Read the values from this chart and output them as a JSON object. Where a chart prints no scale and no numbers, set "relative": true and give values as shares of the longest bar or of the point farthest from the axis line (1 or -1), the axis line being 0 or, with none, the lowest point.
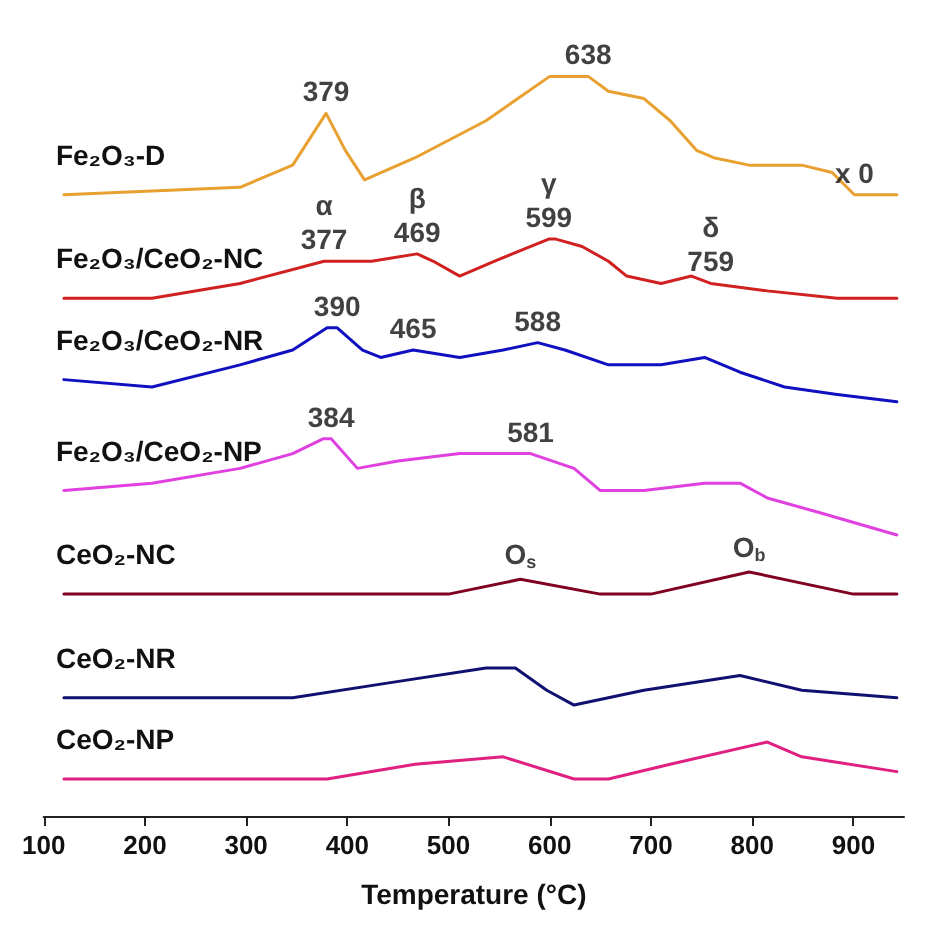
{
  "chart_data": {
    "type": "line",
    "relative": true,
    "xlabel": "Temperature (°C)",
    "xlim": [
      100,
      950
    ],
    "xticks": [
      100,
      200,
      300,
      400,
      500,
      600,
      700,
      800,
      900
    ],
    "grid": false,
    "legend": false,
    "marker": "none",
    "line_style": "solid",
    "series": [
      {
        "name": "Fe₂O₃-D",
        "color": "#e8a030",
        "x": [
          120,
          294,
          346,
          379,
          398,
          417,
          467,
          537,
          600,
          606,
          632,
          638,
          658,
          693,
          719,
          745,
          762,
          797,
          849,
          879,
          901,
          943
        ],
        "values": [
          0.84,
          0.85,
          0.88,
          0.95,
          0.9,
          0.86,
          0.89,
          0.94,
          1.0,
          1.0,
          1.0,
          1.0,
          0.98,
          0.97,
          0.94,
          0.9,
          0.89,
          0.88,
          0.88,
          0.87,
          0.84,
          0.84
        ]
      },
      {
        "name": "Fe₂O₃/CeO₂-NC",
        "color": "#d02020",
        "x": [
          120,
          207,
          294,
          377,
          398,
          424,
          469,
          485,
          511,
          545,
          599,
          606,
          632,
          658,
          676,
          710,
          740,
          759,
          815,
          884,
          943
        ],
        "values": [
          0.7,
          0.7,
          0.72,
          0.75,
          0.75,
          0.75,
          0.76,
          0.75,
          0.73,
          0.75,
          0.78,
          0.78,
          0.77,
          0.75,
          0.73,
          0.72,
          0.73,
          0.72,
          0.71,
          0.7,
          0.7
        ]
      },
      {
        "name": "Fe₂O₃/CeO₂-NR",
        "color": "#1010c0",
        "x": [
          120,
          207,
          294,
          346,
          380,
          390,
          415,
          433,
          465,
          511,
          554,
          588,
          615,
          658,
          710,
          753,
          788,
          832,
          884,
          943
        ],
        "values": [
          0.59,
          0.58,
          0.61,
          0.63,
          0.66,
          0.66,
          0.63,
          0.62,
          0.63,
          0.62,
          0.63,
          0.64,
          0.63,
          0.61,
          0.61,
          0.62,
          0.6,
          0.58,
          0.57,
          0.56
        ]
      },
      {
        "name": "Fe₂O₃/CeO₂-NP",
        "color": "#e040e0",
        "x": [
          120,
          207,
          294,
          346,
          376,
          384,
          410,
          450,
          511,
          554,
          581,
          624,
          650,
          693,
          753,
          788,
          815,
          867,
          943
        ],
        "values": [
          0.44,
          0.45,
          0.47,
          0.49,
          0.51,
          0.51,
          0.47,
          0.48,
          0.49,
          0.49,
          0.49,
          0.47,
          0.44,
          0.44,
          0.45,
          0.45,
          0.43,
          0.41,
          0.38
        ]
      },
      {
        "name": "CeO₂-NC",
        "color": "#800020",
        "x": [
          120,
          300,
          500,
          571,
          650,
          700,
          797,
          900,
          943
        ],
        "values": [
          0.3,
          0.3,
          0.3,
          0.32,
          0.3,
          0.3,
          0.33,
          0.3,
          0.3
        ]
      },
      {
        "name": "CeO₂-NR",
        "color": "#101070",
        "x": [
          120,
          346,
          441,
          537,
          566,
          597,
          624,
          693,
          788,
          849,
          943
        ],
        "values": [
          0.16,
          0.16,
          0.18,
          0.2,
          0.2,
          0.17,
          0.15,
          0.17,
          0.19,
          0.17,
          0.16
        ]
      },
      {
        "name": "CeO₂-NP",
        "color": "#e02080",
        "x": [
          120,
          380,
          467,
          554,
          624,
          658,
          719,
          815,
          849,
          943
        ],
        "values": [
          0.05,
          0.05,
          0.07,
          0.08,
          0.05,
          0.05,
          0.07,
          0.1,
          0.08,
          0.06
        ]
      }
    ],
    "annotations": [
      {
        "text": "379",
        "x": 379,
        "y": 0.95
      },
      {
        "text": "638",
        "x": 638,
        "y": 1.0
      },
      {
        "text": "x 0",
        "x": 901,
        "y": 0.84
      },
      {
        "text": "377",
        "x": 377,
        "y": 0.75
      },
      {
        "text": "469",
        "x": 469,
        "y": 0.76
      },
      {
        "text": "599",
        "x": 599,
        "y": 0.78
      },
      {
        "text": "759",
        "x": 759,
        "y": 0.72
      },
      {
        "text": "α",
        "x": 377,
        "y": 0.75
      },
      {
        "text": "β",
        "x": 469,
        "y": 0.76
      },
      {
        "text": "γ",
        "x": 599,
        "y": 0.78
      },
      {
        "text": "δ",
        "x": 759,
        "y": 0.72
      },
      {
        "text": "390",
        "x": 390,
        "y": 0.66
      },
      {
        "text": "465",
        "x": 465,
        "y": 0.63
      },
      {
        "text": "588",
        "x": 588,
        "y": 0.64
      },
      {
        "text": "384",
        "x": 384,
        "y": 0.51
      },
      {
        "text": "581",
        "x": 581,
        "y": 0.49
      },
      {
        "text": "O$_{s}$",
        "x": 571,
        "y": 0.32
      },
      {
        "text": "O$_{b}$",
        "x": 797,
        "y": 0.33
      }
    ]
  }
}
